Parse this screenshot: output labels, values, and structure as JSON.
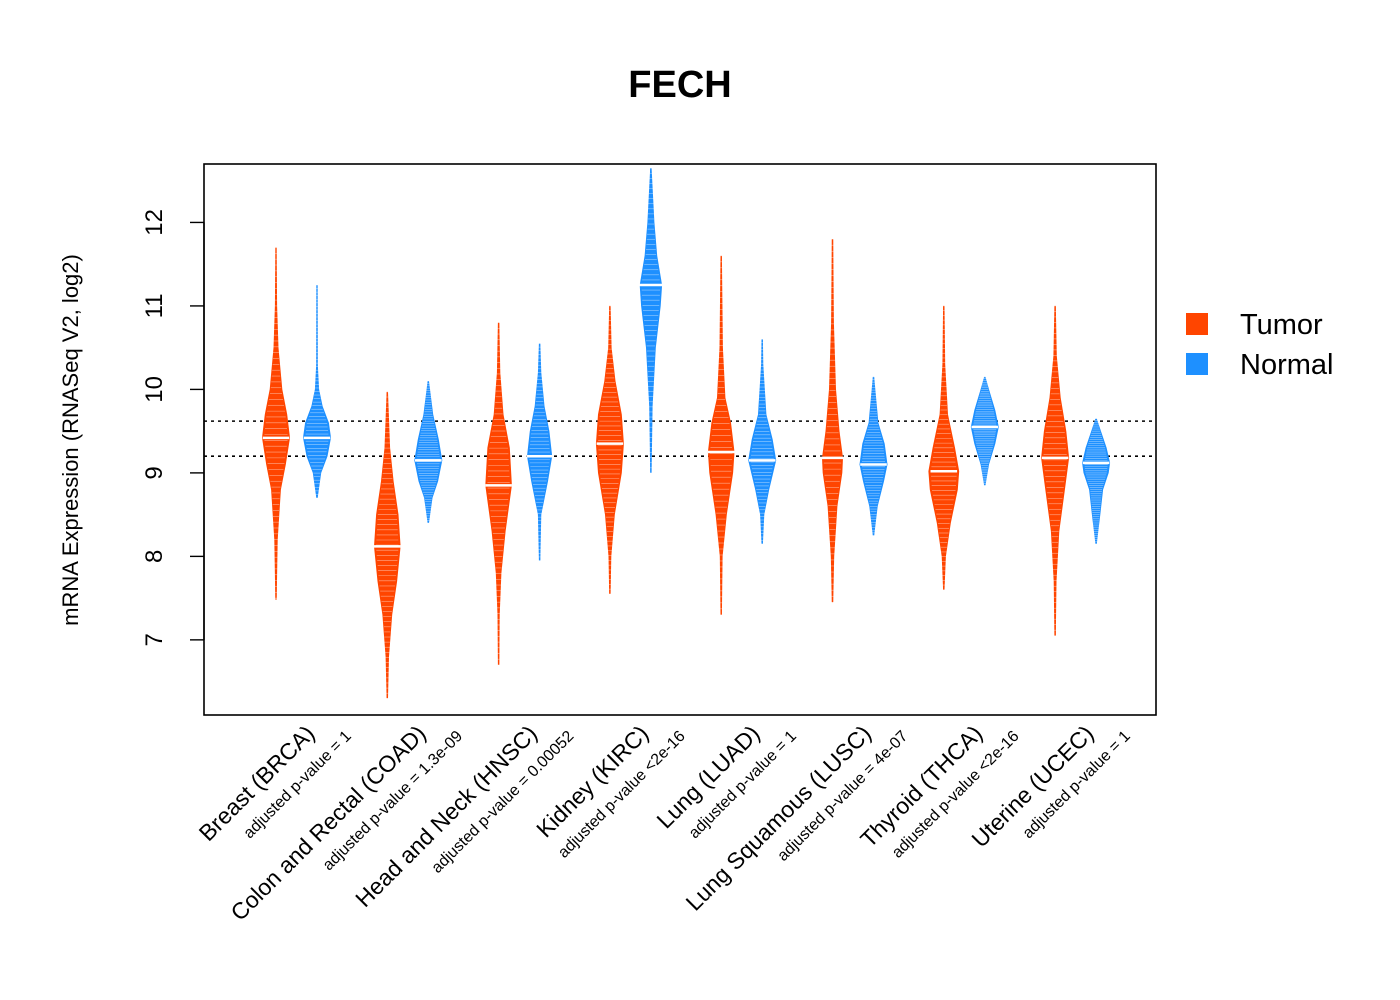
{
  "chart_data": {
    "type": "beanplot",
    "title": "FECH",
    "ylabel": "mRNA Expression (RNASeq V2, log2)",
    "xlabel": "",
    "ylim": [
      6.1,
      12.7
    ],
    "yticks": [
      7,
      8,
      9,
      10,
      11,
      12
    ],
    "reference_lines": [
      9.62,
      9.2
    ],
    "legend": [
      {
        "name": "Tumor",
        "color": "#FF4500"
      },
      {
        "name": "Normal",
        "color": "#1E90FF"
      }
    ],
    "legend_position": "right",
    "groups": [
      {
        "label": "Breast (BRCA)",
        "pvalue": "adjusted p-value = 1",
        "tumor": {
          "median": 9.42,
          "min": 7.48,
          "max": 11.7,
          "profile": [
            [
              7.5,
              0.05
            ],
            [
              8.2,
              0.12
            ],
            [
              8.8,
              0.35
            ],
            [
              9.1,
              0.7
            ],
            [
              9.42,
              1.0
            ],
            [
              9.7,
              0.8
            ],
            [
              10.0,
              0.45
            ],
            [
              10.5,
              0.18
            ],
            [
              11.0,
              0.08
            ],
            [
              11.7,
              0.04
            ]
          ]
        },
        "normal": {
          "median": 9.42,
          "min": 8.7,
          "max": 11.25,
          "profile": [
            [
              8.7,
              0.05
            ],
            [
              9.0,
              0.3
            ],
            [
              9.2,
              0.75
            ],
            [
              9.42,
              1.0
            ],
            [
              9.6,
              0.85
            ],
            [
              9.8,
              0.4
            ],
            [
              10.0,
              0.15
            ],
            [
              10.3,
              0.06
            ],
            [
              11.25,
              0.04
            ]
          ]
        }
      },
      {
        "label": "Colon and Rectal (COAD)",
        "pvalue": "adjusted p-value = 1.3e-09",
        "tumor": {
          "median": 8.12,
          "min": 6.3,
          "max": 9.97,
          "profile": [
            [
              6.3,
              0.05
            ],
            [
              6.8,
              0.12
            ],
            [
              7.3,
              0.35
            ],
            [
              7.7,
              0.7
            ],
            [
              8.12,
              0.95
            ],
            [
              8.5,
              0.8
            ],
            [
              8.9,
              0.45
            ],
            [
              9.3,
              0.2
            ],
            [
              9.97,
              0.05
            ]
          ]
        },
        "normal": {
          "median": 9.15,
          "min": 8.4,
          "max": 10.1,
          "profile": [
            [
              8.4,
              0.05
            ],
            [
              8.7,
              0.3
            ],
            [
              8.9,
              0.7
            ],
            [
              9.15,
              1.0
            ],
            [
              9.4,
              0.75
            ],
            [
              9.7,
              0.35
            ],
            [
              10.1,
              0.05
            ]
          ]
        }
      },
      {
        "label": "Head and Neck (HNSC)",
        "pvalue": "adjusted p-value = 0.00052",
        "tumor": {
          "median": 8.85,
          "min": 6.7,
          "max": 10.8,
          "profile": [
            [
              6.7,
              0.05
            ],
            [
              7.3,
              0.08
            ],
            [
              7.8,
              0.2
            ],
            [
              8.3,
              0.5
            ],
            [
              8.85,
              0.95
            ],
            [
              9.3,
              0.8
            ],
            [
              9.7,
              0.35
            ],
            [
              10.2,
              0.12
            ],
            [
              10.8,
              0.05
            ]
          ]
        },
        "normal": {
          "median": 9.2,
          "min": 7.95,
          "max": 10.55,
          "profile": [
            [
              7.95,
              0.05
            ],
            [
              8.5,
              0.12
            ],
            [
              8.9,
              0.6
            ],
            [
              9.2,
              0.9
            ],
            [
              9.5,
              0.7
            ],
            [
              9.8,
              0.35
            ],
            [
              10.2,
              0.12
            ],
            [
              10.55,
              0.05
            ]
          ]
        }
      },
      {
        "label": "Kidney (KIRC)",
        "pvalue": "adjusted p-value <2e-16",
        "tumor": {
          "median": 9.35,
          "min": 7.55,
          "max": 11.0,
          "profile": [
            [
              7.55,
              0.05
            ],
            [
              8.0,
              0.1
            ],
            [
              8.5,
              0.35
            ],
            [
              9.0,
              0.85
            ],
            [
              9.35,
              1.0
            ],
            [
              9.7,
              0.85
            ],
            [
              10.1,
              0.4
            ],
            [
              10.5,
              0.12
            ],
            [
              11.0,
              0.05
            ]
          ]
        },
        "normal": {
          "median": 11.25,
          "min": 9.0,
          "max": 12.65,
          "profile": [
            [
              9.0,
              0.05
            ],
            [
              9.8,
              0.12
            ],
            [
              10.5,
              0.35
            ],
            [
              11.0,
              0.7
            ],
            [
              11.25,
              0.8
            ],
            [
              11.6,
              0.45
            ],
            [
              12.0,
              0.25
            ],
            [
              12.65,
              0.05
            ]
          ]
        }
      },
      {
        "label": "Lung (LUAD)",
        "pvalue": "adjusted p-value = 1",
        "tumor": {
          "median": 9.25,
          "min": 7.3,
          "max": 11.6,
          "profile": [
            [
              7.3,
              0.05
            ],
            [
              8.0,
              0.1
            ],
            [
              8.5,
              0.4
            ],
            [
              9.0,
              0.85
            ],
            [
              9.25,
              0.95
            ],
            [
              9.6,
              0.7
            ],
            [
              9.9,
              0.3
            ],
            [
              10.5,
              0.12
            ],
            [
              11.6,
              0.05
            ]
          ]
        },
        "normal": {
          "median": 9.15,
          "min": 8.15,
          "max": 10.6,
          "profile": [
            [
              8.15,
              0.05
            ],
            [
              8.5,
              0.15
            ],
            [
              8.8,
              0.5
            ],
            [
              9.15,
              1.0
            ],
            [
              9.4,
              0.75
            ],
            [
              9.7,
              0.3
            ],
            [
              10.3,
              0.08
            ],
            [
              10.6,
              0.05
            ]
          ]
        }
      },
      {
        "label": "Lung Squamous (LUSC)",
        "pvalue": "adjusted p-value = 4e-07",
        "tumor": {
          "median": 9.18,
          "min": 7.45,
          "max": 11.8,
          "profile": [
            [
              7.45,
              0.05
            ],
            [
              8.0,
              0.12
            ],
            [
              8.6,
              0.35
            ],
            [
              9.0,
              0.7
            ],
            [
              9.18,
              0.75
            ],
            [
              9.5,
              0.5
            ],
            [
              10.0,
              0.25
            ],
            [
              10.8,
              0.1
            ],
            [
              11.8,
              0.05
            ]
          ]
        },
        "normal": {
          "median": 9.1,
          "min": 8.25,
          "max": 10.15,
          "profile": [
            [
              8.25,
              0.05
            ],
            [
              8.6,
              0.3
            ],
            [
              8.9,
              0.75
            ],
            [
              9.1,
              1.0
            ],
            [
              9.35,
              0.8
            ],
            [
              9.6,
              0.35
            ],
            [
              10.15,
              0.05
            ]
          ]
        }
      },
      {
        "label": "Thyroid (THCA)",
        "pvalue": "adjusted p-value <2e-16",
        "tumor": {
          "median": 9.02,
          "min": 7.6,
          "max": 11.0,
          "profile": [
            [
              7.6,
              0.05
            ],
            [
              8.0,
              0.15
            ],
            [
              8.4,
              0.5
            ],
            [
              8.8,
              1.0
            ],
            [
              9.02,
              1.1
            ],
            [
              9.3,
              0.8
            ],
            [
              9.7,
              0.3
            ],
            [
              10.3,
              0.1
            ],
            [
              11.0,
              0.05
            ]
          ]
        },
        "normal": {
          "median": 9.55,
          "min": 8.85,
          "max": 10.15,
          "profile": [
            [
              8.85,
              0.05
            ],
            [
              9.1,
              0.3
            ],
            [
              9.35,
              0.75
            ],
            [
              9.55,
              1.0
            ],
            [
              9.75,
              0.75
            ],
            [
              10.0,
              0.3
            ],
            [
              10.15,
              0.05
            ]
          ]
        }
      },
      {
        "label": "Uterine (UCEC)",
        "pvalue": "adjusted p-value = 1",
        "tumor": {
          "median": 9.18,
          "min": 7.05,
          "max": 11.0,
          "profile": [
            [
              7.05,
              0.05
            ],
            [
              7.7,
              0.1
            ],
            [
              8.3,
              0.3
            ],
            [
              8.8,
              0.7
            ],
            [
              9.18,
              1.0
            ],
            [
              9.5,
              0.8
            ],
            [
              9.9,
              0.4
            ],
            [
              10.4,
              0.12
            ],
            [
              11.0,
              0.05
            ]
          ]
        },
        "normal": {
          "median": 9.12,
          "min": 8.15,
          "max": 9.65,
          "profile": [
            [
              8.15,
              0.05
            ],
            [
              8.5,
              0.3
            ],
            [
              8.8,
              0.5
            ],
            [
              9.0,
              0.9
            ],
            [
              9.12,
              1.0
            ],
            [
              9.3,
              0.75
            ],
            [
              9.5,
              0.35
            ],
            [
              9.65,
              0.05
            ]
          ]
        }
      }
    ]
  }
}
